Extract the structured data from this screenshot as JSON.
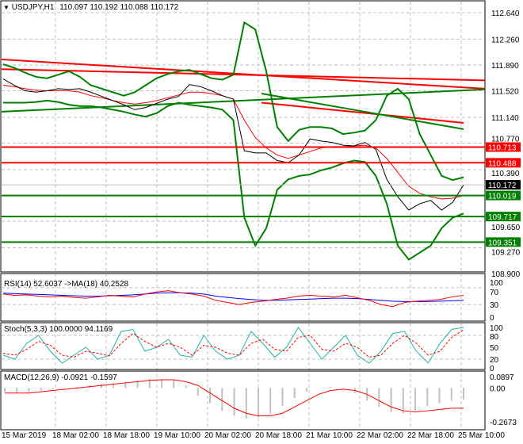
{
  "header": {
    "symbol": "USDJPY,H1",
    "ohlc": "110.097 110.192 110.088 110.172"
  },
  "colors": {
    "bull_line": "#008000",
    "bear_line": "#ff0000",
    "rsi": "#0000ff",
    "rsi_ma": "#ff0000",
    "stoch_main": "#20b2aa",
    "stoch_signal": "#ff0000",
    "macd_hist": "#c0c0c0",
    "macd_signal": "#ff0000",
    "current_price_bg": "#000000"
  },
  "chart_data": [
    {
      "type": "line",
      "pane": "price",
      "ylim": [
        108.9,
        112.64
      ],
      "y_ticks": [
        "112.640",
        "112.260",
        "111.890",
        "111.520",
        "111.140",
        "110.770",
        "110.390",
        "110.019",
        "109.650",
        "109.270",
        "108.900"
      ],
      "x_ticks": [
        "15 Mar 2019",
        "18 Mar 02:00",
        "18 Mar 18:00",
        "19 Mar 10:00",
        "20 Mar 02:00",
        "20 Mar 18:00",
        "21 Mar 10:00",
        "22 Mar 02:00",
        "22 Mar 18:00",
        "25 Mar 10:00"
      ],
      "grid": true,
      "close": [
        111.69,
        111.6,
        111.52,
        111.5,
        111.52,
        111.55,
        111.54,
        111.55,
        111.5,
        111.44,
        111.38,
        111.32,
        111.25,
        111.28,
        111.34,
        111.4,
        111.44,
        111.61,
        111.58,
        111.52,
        111.45,
        111.4,
        110.66,
        110.63,
        110.63,
        110.52,
        110.49,
        110.6,
        110.83,
        110.8,
        110.78,
        110.74,
        110.73,
        110.78,
        110.68,
        110.25,
        110.0,
        109.81,
        109.9,
        109.95,
        109.81,
        109.92,
        110.17
      ],
      "bollinger_upper": [
        111.9,
        111.85,
        111.78,
        111.72,
        111.7,
        111.75,
        111.8,
        111.72,
        111.6,
        111.55,
        111.5,
        111.45,
        111.5,
        111.6,
        111.7,
        111.76,
        111.8,
        111.82,
        111.76,
        111.7,
        111.68,
        111.75,
        112.5,
        112.4,
        111.8,
        111.0,
        110.8,
        110.96,
        111.0,
        111.0,
        110.98,
        110.9,
        110.92,
        110.95,
        111.1,
        111.45,
        111.55,
        111.4,
        110.9,
        110.6,
        110.3,
        110.24,
        110.28
      ],
      "bollinger_middle": [
        111.6,
        111.58,
        111.55,
        111.53,
        111.52,
        111.52,
        111.52,
        111.5,
        111.45,
        111.42,
        111.38,
        111.35,
        111.33,
        111.35,
        111.38,
        111.42,
        111.46,
        111.5,
        111.5,
        111.48,
        111.45,
        111.4,
        111.1,
        110.85,
        110.7,
        110.6,
        110.55,
        110.6,
        110.65,
        110.7,
        110.72,
        110.72,
        110.73,
        110.74,
        110.7,
        110.55,
        110.35,
        110.15,
        110.05,
        110.0,
        109.97,
        109.98,
        110.02
      ],
      "bollinger_lower": [
        111.35,
        111.35,
        111.35,
        111.36,
        111.38,
        111.36,
        111.32,
        111.3,
        111.3,
        111.28,
        111.25,
        111.22,
        111.18,
        111.15,
        111.2,
        111.3,
        111.35,
        111.32,
        111.3,
        111.28,
        111.25,
        111.1,
        109.7,
        109.3,
        109.55,
        110.1,
        110.25,
        110.3,
        110.32,
        110.38,
        110.42,
        110.48,
        110.52,
        110.5,
        110.3,
        109.9,
        109.3,
        109.1,
        109.2,
        109.3,
        109.55,
        109.7,
        109.76
      ],
      "levels": [
        {
          "price": "110.713",
          "color": "#ff0000"
        },
        {
          "price": "110.488",
          "color": "#ff0000"
        },
        {
          "price": "110.019",
          "color": "#008000"
        },
        {
          "price": "109.717",
          "color": "#008000"
        },
        {
          "price": "109.351",
          "color": "#008000"
        }
      ],
      "trendlines": [
        {
          "from": 111.97,
          "to": 111.55,
          "color": "#ff0000"
        },
        {
          "from": 111.83,
          "to": 111.67,
          "color": "#ff0000"
        },
        {
          "from": 111.22,
          "to": 111.54,
          "color": "#008000"
        }
      ],
      "current_price": "110.172"
    },
    {
      "type": "line",
      "pane": "rsi",
      "label": "RSI(14) 52.6037 ->MA(18) 40.2528",
      "ylim": [
        0,
        100
      ],
      "y_ticks": [
        "100",
        "70",
        "30",
        "0"
      ],
      "rsi": [
        55,
        52,
        53,
        50,
        48,
        50,
        47,
        45,
        48,
        52,
        50,
        48,
        55,
        60,
        63,
        58,
        55,
        50,
        40,
        35,
        30,
        35,
        38,
        42,
        45,
        50,
        52,
        50,
        48,
        52,
        46,
        40,
        30,
        25,
        35,
        38,
        40,
        42,
        48,
        52
      ],
      "ma": [
        57,
        56,
        55,
        54,
        53,
        52,
        51,
        50,
        50,
        51,
        52,
        53,
        55,
        57,
        58,
        58,
        57,
        55,
        50,
        47,
        44,
        42,
        40,
        40,
        41,
        42,
        43,
        44,
        45,
        45,
        44,
        42,
        40,
        38,
        37,
        37,
        37,
        38,
        39,
        40
      ]
    },
    {
      "type": "line",
      "pane": "stochastic",
      "label": "Stoch(5,3,3) 100.0000 94.1169",
      "ylim": [
        0,
        100
      ],
      "y_ticks": [
        "100",
        "80",
        "50",
        "20",
        "0"
      ],
      "main": [
        30,
        20,
        60,
        80,
        40,
        10,
        30,
        50,
        20,
        30,
        90,
        95,
        40,
        50,
        70,
        30,
        25,
        80,
        40,
        20,
        30,
        90,
        60,
        25,
        50,
        100,
        60,
        20,
        50,
        80,
        30,
        10,
        40,
        85,
        90,
        40,
        10,
        60,
        95,
        100
      ],
      "signal": [
        35,
        30,
        45,
        65,
        55,
        30,
        25,
        40,
        35,
        28,
        60,
        85,
        65,
        50,
        60,
        50,
        30,
        55,
        50,
        35,
        30,
        60,
        70,
        45,
        40,
        75,
        80,
        45,
        40,
        60,
        50,
        25,
        30,
        60,
        80,
        60,
        30,
        40,
        75,
        94
      ]
    },
    {
      "type": "bar",
      "pane": "macd",
      "label": "MACD(12,26,9) -0.0921 -0.1597",
      "ylim": [
        -0.2673,
        0.0897
      ],
      "y_ticks": [
        "0.0897",
        "0.00",
        "-0.2673"
      ],
      "histogram": [
        -0.03,
        -0.04,
        -0.03,
        -0.02,
        -0.01,
        0.0,
        0.01,
        0.02,
        0.03,
        0.04,
        0.05,
        0.06,
        0.07,
        0.07,
        0.06,
        0.02,
        -0.06,
        -0.12,
        -0.18,
        -0.22,
        -0.24,
        -0.23,
        -0.2,
        -0.14,
        -0.08,
        -0.03,
        0.0,
        0.01,
        0.0,
        -0.04,
        -0.1,
        -0.15,
        -0.19,
        -0.2,
        -0.18,
        -0.14,
        -0.12,
        -0.1,
        -0.09
      ],
      "signal": [
        -0.04,
        -0.04,
        -0.04,
        -0.03,
        -0.02,
        -0.01,
        0.0,
        0.01,
        0.02,
        0.03,
        0.04,
        0.05,
        0.06,
        0.065,
        0.065,
        0.05,
        0.02,
        -0.04,
        -0.1,
        -0.16,
        -0.2,
        -0.22,
        -0.22,
        -0.2,
        -0.15,
        -0.1,
        -0.05,
        -0.02,
        -0.01,
        -0.02,
        -0.05,
        -0.1,
        -0.15,
        -0.18,
        -0.19,
        -0.18,
        -0.17,
        -0.16,
        -0.16
      ]
    }
  ]
}
